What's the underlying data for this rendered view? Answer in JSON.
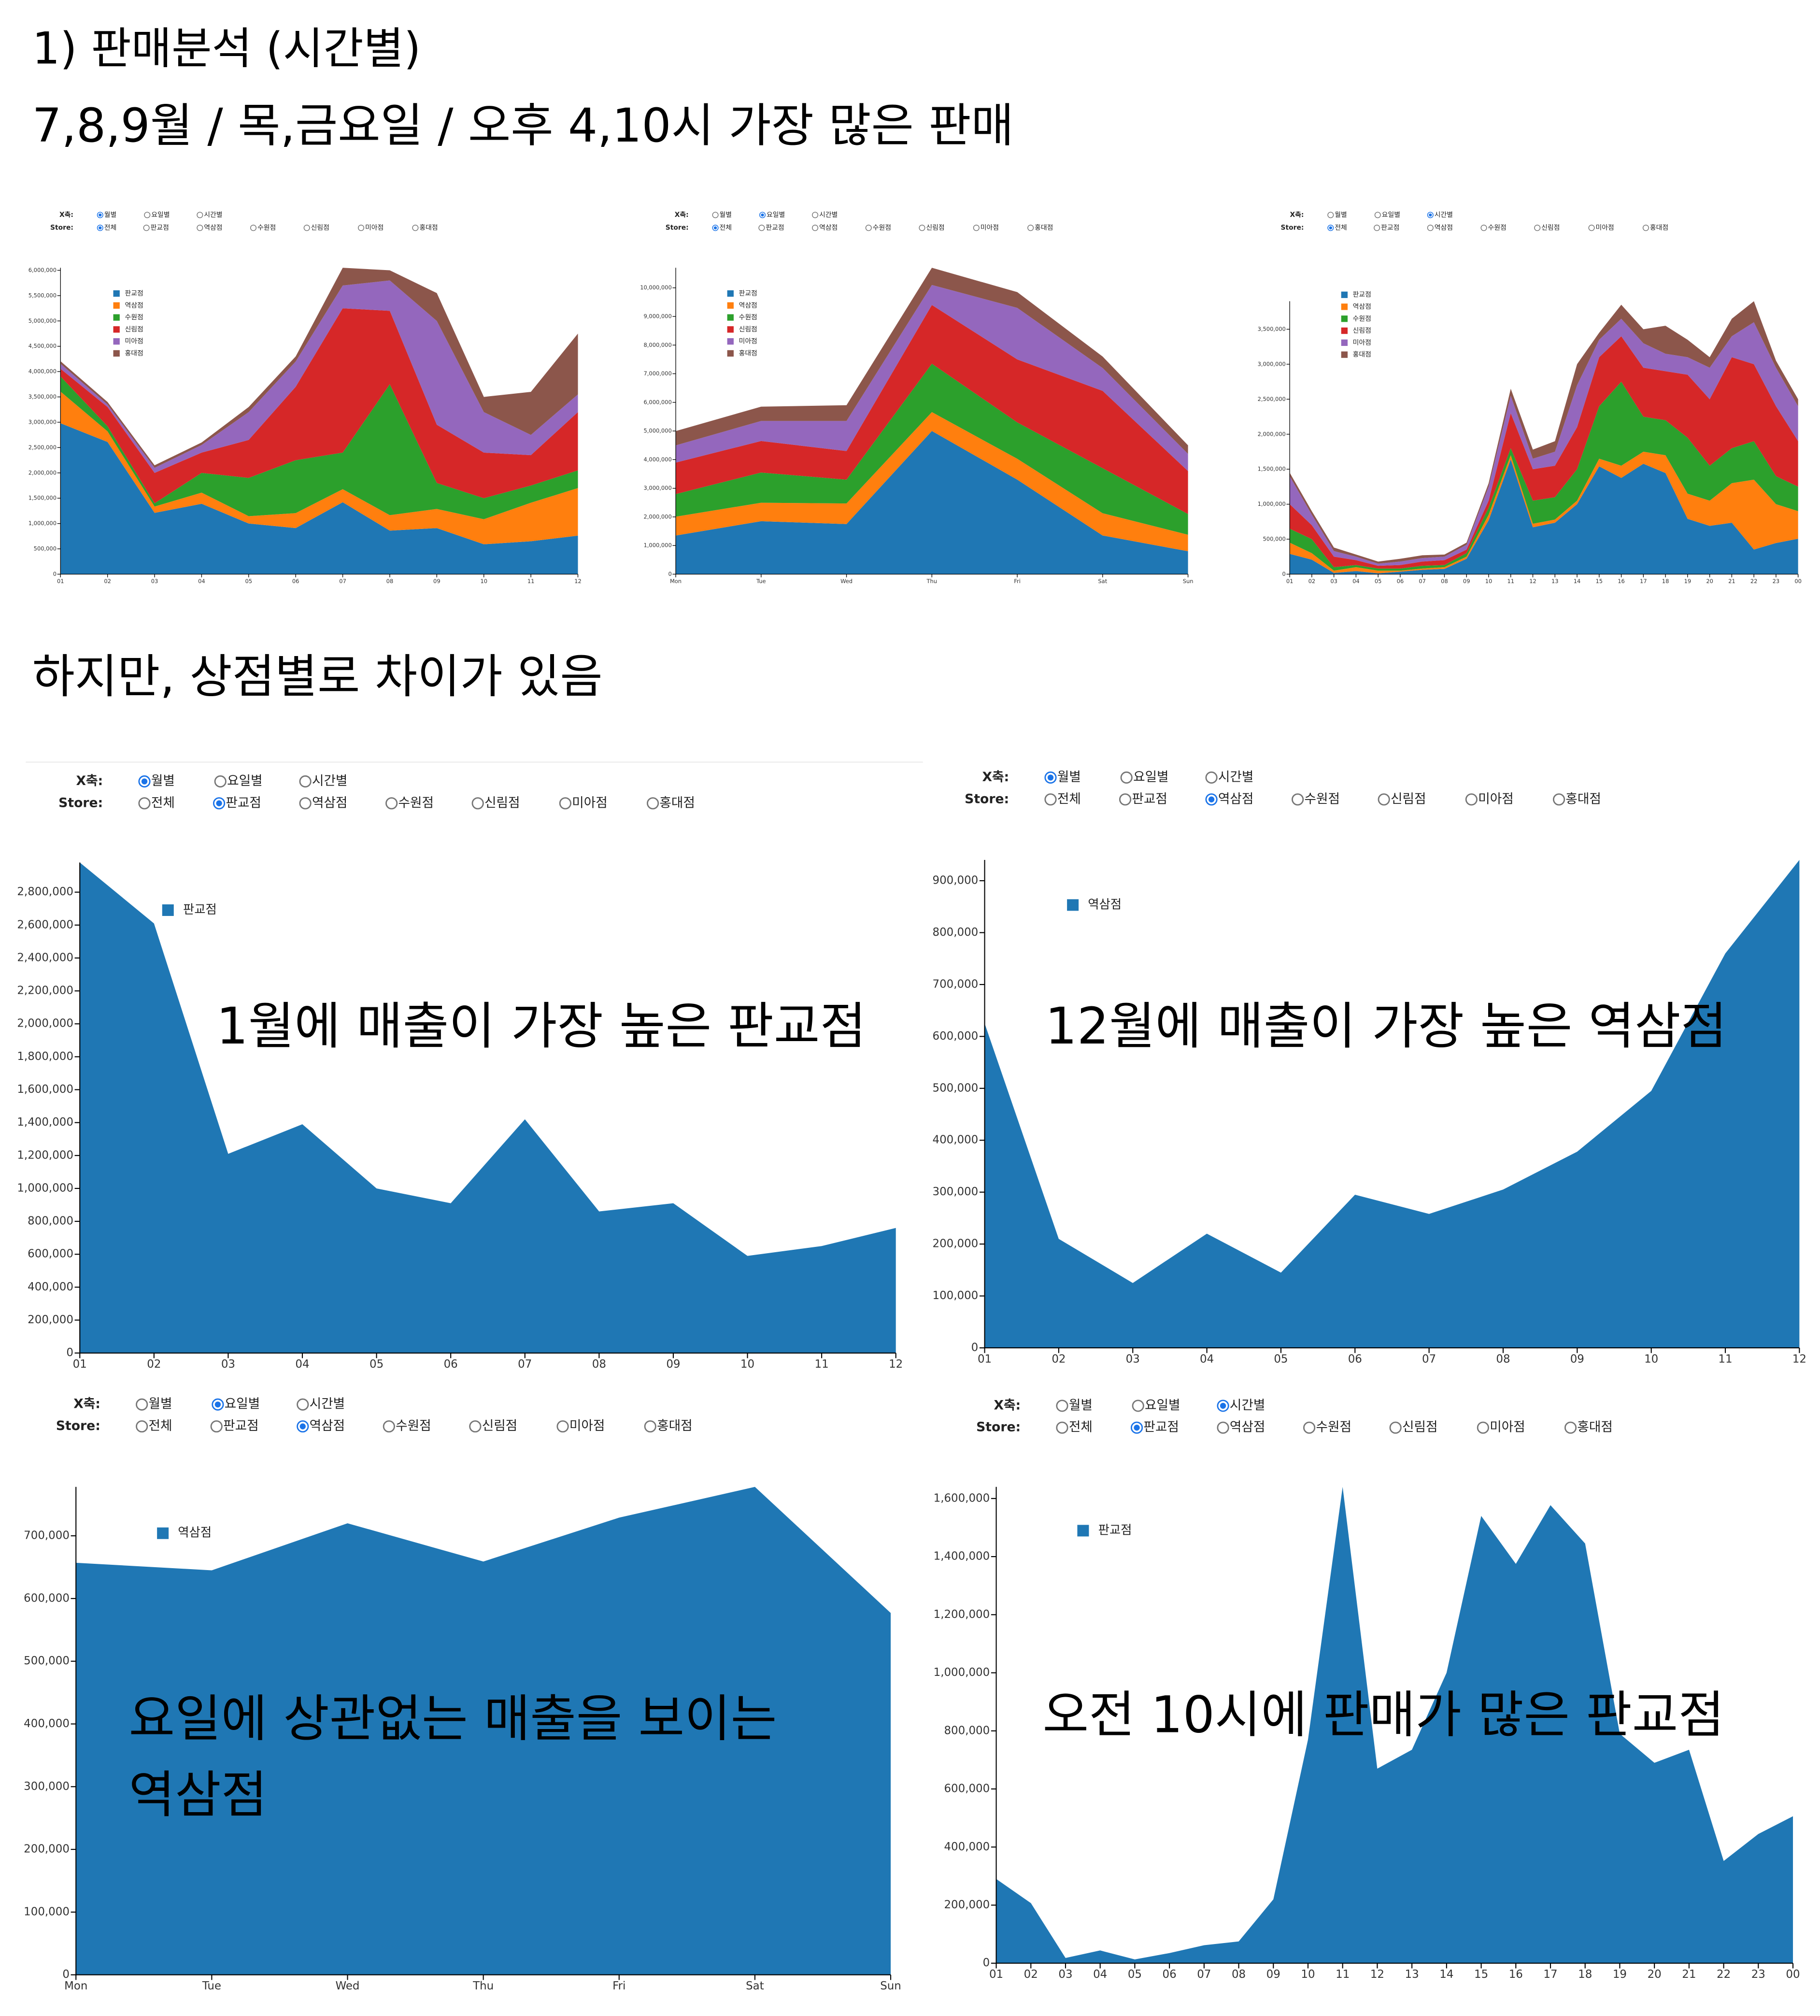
{
  "heading": {
    "title": "1) 판매분석 (시간별)",
    "summary": "7,8,9월 / 목,금요일 / 오후 4,10시 가장 많은 판매",
    "note": "하지만, 상점별로 차이가 있음"
  },
  "chart_data": [
    {
      "type": "stacked_area",
      "controls": {
        "x_label": "X축:",
        "x_options": [
          "월별",
          "요일별",
          "시간별"
        ],
        "store_label": "Store:",
        "store_options": [
          "전체",
          "판교점",
          "역삼점",
          "수원점",
          "신림점",
          "미아점",
          "홍대점"
        ],
        "x_selected": 0,
        "store_selected": 0
      },
      "categories": [
        "01",
        "02",
        "03",
        "04",
        "05",
        "06",
        "07",
        "08",
        "09",
        "10",
        "11",
        "12"
      ],
      "series": [
        {
          "name": "판교점",
          "color": "#1f77b4",
          "values": [
            2980000,
            2610000,
            1210000,
            1390000,
            1000000,
            910000,
            1420000,
            860000,
            910000,
            590000,
            650000,
            760000
          ]
        },
        {
          "name": "역삼점",
          "color": "#ff7f0e",
          "values": [
            625000,
            210000,
            125000,
            220000,
            145000,
            295000,
            258000,
            305000,
            378000,
            495000,
            760000,
            940000
          ]
        },
        {
          "name": "수원점",
          "color": "#2ca02c",
          "values": [
            300000,
            100000,
            65000,
            390000,
            755000,
            1045000,
            722000,
            2585000,
            512000,
            415000,
            340000,
            350000
          ]
        },
        {
          "name": "신림점",
          "color": "#d62728",
          "values": [
            150000,
            380000,
            600000,
            400000,
            750000,
            1450000,
            2850000,
            1450000,
            1150000,
            900000,
            600000,
            1150000
          ]
        },
        {
          "name": "미아점",
          "color": "#9467bd",
          "values": [
            100000,
            50000,
            100000,
            150000,
            550000,
            500000,
            450000,
            600000,
            2050000,
            800000,
            400000,
            350000
          ]
        },
        {
          "name": "홍대점",
          "color": "#8c564b",
          "values": [
            50000,
            50000,
            50000,
            50000,
            100000,
            100000,
            350000,
            200000,
            550000,
            300000,
            850000,
            1200000
          ]
        }
      ],
      "ylim": [
        0,
        6050000
      ],
      "yticks": [
        0,
        {
          "value": 500000,
          "label": "500,000"
        },
        {
          "value": 1000000,
          "label": "1,000,000"
        },
        {
          "value": 1500000,
          "label": "1,500,000"
        },
        {
          "value": 2000000,
          "label": "2,000,000"
        },
        {
          "value": 2500000,
          "label": "2,500,000"
        },
        {
          "value": 3000000,
          "label": "3,000,000"
        },
        {
          "value": 3500000,
          "label": "3,500,000"
        },
        {
          "value": 4000000,
          "label": "4,000,000"
        },
        {
          "value": 4500000,
          "label": "4,500,000"
        },
        {
          "value": 5000000,
          "label": "5,000,000"
        },
        {
          "value": 5500000,
          "label": "5,500,000"
        },
        {
          "value": 6000000,
          "label": "6,000,000"
        }
      ]
    },
    {
      "type": "stacked_area",
      "controls": {
        "x_label": "X축:",
        "x_options": [
          "월별",
          "요일별",
          "시간별"
        ],
        "store_label": "Store:",
        "store_options": [
          "전체",
          "판교점",
          "역삼점",
          "수원점",
          "신림점",
          "미아점",
          "홍대점"
        ],
        "x_selected": 1,
        "store_selected": 0
      },
      "categories": [
        "Mon",
        "Tue",
        "Wed",
        "Thu",
        "Fri",
        "Sat",
        "Sun"
      ],
      "series": [
        {
          "name": "판교점",
          "color": "#1f77b4",
          "values": [
            1350000,
            1850000,
            1750000,
            5000000,
            3300000,
            1350000,
            800000
          ]
        },
        {
          "name": "역삼점",
          "color": "#ff7f0e",
          "values": [
            657000,
            645000,
            720000,
            659000,
            729000,
            778000,
            577000
          ]
        },
        {
          "name": "수원점",
          "color": "#2ca02c",
          "values": [
            790000,
            1055000,
            830000,
            1691000,
            1271000,
            1572000,
            723000
          ]
        },
        {
          "name": "신림점",
          "color": "#d62728",
          "values": [
            1100000,
            1100000,
            1000000,
            2050000,
            2200000,
            2700000,
            1500000
          ]
        },
        {
          "name": "미아점",
          "color": "#9467bd",
          "values": [
            600000,
            700000,
            1050000,
            700000,
            1800000,
            800000,
            600000
          ]
        },
        {
          "name": "홍대점",
          "color": "#8c564b",
          "values": [
            500000,
            500000,
            550000,
            600000,
            550000,
            400000,
            300000
          ]
        }
      ],
      "ylim": [
        0,
        10700000
      ],
      "yticks": [
        0,
        {
          "value": 1000000,
          "label": "1,000,000"
        },
        {
          "value": 2000000,
          "label": "2,000,000"
        },
        {
          "value": 3000000,
          "label": "3,000,000"
        },
        {
          "value": 4000000,
          "label": "4,000,000"
        },
        {
          "value": 5000000,
          "label": "5,000,000"
        },
        {
          "value": 6000000,
          "label": "6,000,000"
        },
        {
          "value": 7000000,
          "label": "7,000,000"
        },
        {
          "value": 8000000,
          "label": "8,000,000"
        },
        {
          "value": 9000000,
          "label": "9,000,000"
        },
        {
          "value": 10000000,
          "label": "10,000,000"
        }
      ]
    },
    {
      "type": "stacked_area",
      "controls": {
        "x_label": "X축:",
        "x_options": [
          "월별",
          "요일별",
          "시간별"
        ],
        "store_label": "Store:",
        "store_options": [
          "전체",
          "판교점",
          "역삼점",
          "수원점",
          "신림점",
          "미아점",
          "홍대점"
        ],
        "x_selected": 2,
        "store_selected": 0
      },
      "categories": [
        "01",
        "02",
        "03",
        "04",
        "05",
        "06",
        "07",
        "08",
        "09",
        "10",
        "11",
        "12",
        "13",
        "14",
        "15",
        "16",
        "17",
        "18",
        "19",
        "20",
        "21",
        "22",
        "23",
        "00"
      ],
      "series": [
        {
          "name": "판교점",
          "color": "#1f77b4",
          "values": [
            290000,
            207000,
            18000,
            44000,
            13000,
            35000,
            62000,
            75000,
            220000,
            770000,
            1640000,
            670000,
            735000,
            1000000,
            1540000,
            1375000,
            1577000,
            1445000,
            790000,
            690000,
            735000,
            352000,
            445000,
            506000
          ]
        },
        {
          "name": "역삼점",
          "color": "#ff7f0e",
          "values": [
            160000,
            93000,
            32000,
            56000,
            37000,
            15000,
            18000,
            25000,
            30000,
            80000,
            60000,
            50000,
            45000,
            50000,
            110000,
            175000,
            173000,
            255000,
            360000,
            360000,
            565000,
            998000,
            555000,
            394000
          ]
        },
        {
          "name": "수원점",
          "color": "#2ca02c",
          "values": [
            200000,
            200000,
            50000,
            30000,
            30000,
            30000,
            40000,
            30000,
            50000,
            100000,
            100000,
            330000,
            320000,
            450000,
            750000,
            1200000,
            500000,
            500000,
            800000,
            500000,
            500000,
            550000,
            400000,
            350000
          ]
        },
        {
          "name": "신림점",
          "color": "#d62728",
          "values": [
            350000,
            200000,
            150000,
            70000,
            40000,
            50000,
            60000,
            70000,
            50000,
            100000,
            500000,
            450000,
            450000,
            600000,
            700000,
            650000,
            700000,
            700000,
            900000,
            950000,
            1300000,
            1100000,
            1000000,
            650000
          ]
        },
        {
          "name": "미아점",
          "color": "#9467bd",
          "values": [
            400000,
            150000,
            80000,
            50000,
            30000,
            50000,
            50000,
            50000,
            70000,
            200000,
            250000,
            150000,
            200000,
            600000,
            250000,
            250000,
            350000,
            250000,
            250000,
            450000,
            300000,
            600000,
            550000,
            500000
          ]
        },
        {
          "name": "홍대점",
          "color": "#8c564b",
          "values": [
            50000,
            50000,
            50000,
            30000,
            30000,
            40000,
            40000,
            30000,
            30000,
            50000,
            100000,
            130000,
            150000,
            300000,
            100000,
            200000,
            200000,
            400000,
            250000,
            150000,
            250000,
            300000,
            100000,
            100000
          ]
        }
      ],
      "ylim": [
        0,
        3900000
      ],
      "yticks": [
        0,
        {
          "value": 500000,
          "label": "500,000"
        },
        {
          "value": 1000000,
          "label": "1,000,000"
        },
        {
          "value": 1500000,
          "label": "1,500,000"
        },
        {
          "value": 2000000,
          "label": "2,000,000"
        },
        {
          "value": 2500000,
          "label": "2,500,000"
        },
        {
          "value": 3000000,
          "label": "3,000,000"
        },
        {
          "value": 3500000,
          "label": "3,500,000"
        }
      ]
    },
    {
      "type": "stacked_area",
      "controls": {
        "x_label": "X축:",
        "x_options": [
          "월별",
          "요일별",
          "시간별"
        ],
        "store_label": "Store:",
        "store_options": [
          "전체",
          "판교점",
          "역삼점",
          "수원점",
          "신림점",
          "미아점",
          "홍대점"
        ],
        "x_selected": 0,
        "store_selected": 1
      },
      "annotation": [
        "1월에 매출이 가장 높은 판교점"
      ],
      "categories": [
        "01",
        "02",
        "03",
        "04",
        "05",
        "06",
        "07",
        "08",
        "09",
        "10",
        "11",
        "12"
      ],
      "series": [
        {
          "name": "판교점",
          "color": "#1f77b4",
          "values": [
            2980000,
            2610000,
            1210000,
            1390000,
            1000000,
            910000,
            1420000,
            860000,
            910000,
            590000,
            650000,
            760000
          ]
        }
      ],
      "ylim": [
        0,
        2980000
      ],
      "yticks": [
        0,
        {
          "value": 200000,
          "label": "200,000"
        },
        {
          "value": 400000,
          "label": "400,000"
        },
        {
          "value": 600000,
          "label": "600,000"
        },
        {
          "value": 800000,
          "label": "800,000"
        },
        {
          "value": 1000000,
          "label": "1,000,000"
        },
        {
          "value": 1200000,
          "label": "1,200,000"
        },
        {
          "value": 1400000,
          "label": "1,400,000"
        },
        {
          "value": 1600000,
          "label": "1,600,000"
        },
        {
          "value": 1800000,
          "label": "1,800,000"
        },
        {
          "value": 2000000,
          "label": "2,000,000"
        },
        {
          "value": 2200000,
          "label": "2,200,000"
        },
        {
          "value": 2400000,
          "label": "2,400,000"
        },
        {
          "value": 2600000,
          "label": "2,600,000"
        },
        {
          "value": 2800000,
          "label": "2,800,000"
        }
      ]
    },
    {
      "type": "stacked_area",
      "controls": {
        "x_label": "X축:",
        "x_options": [
          "월별",
          "요일별",
          "시간별"
        ],
        "store_label": "Store:",
        "store_options": [
          "전체",
          "판교점",
          "역삼점",
          "수원점",
          "신림점",
          "미아점",
          "홍대점"
        ],
        "x_selected": 0,
        "store_selected": 2
      },
      "annotation": [
        "12월에 매출이 가장 높은 역삼점"
      ],
      "categories": [
        "01",
        "02",
        "03",
        "04",
        "05",
        "06",
        "07",
        "08",
        "09",
        "10",
        "11",
        "12"
      ],
      "series": [
        {
          "name": "역삼점",
          "color": "#1f77b4",
          "values": [
            625000,
            210000,
            125000,
            220000,
            145000,
            295000,
            258000,
            305000,
            378000,
            495000,
            760000,
            940000
          ]
        }
      ],
      "ylim": [
        0,
        940000
      ],
      "yticks": [
        0,
        {
          "value": 100000,
          "label": "100,000"
        },
        {
          "value": 200000,
          "label": "200,000"
        },
        {
          "value": 300000,
          "label": "300,000"
        },
        {
          "value": 400000,
          "label": "400,000"
        },
        {
          "value": 500000,
          "label": "500,000"
        },
        {
          "value": 600000,
          "label": "600,000"
        },
        {
          "value": 700000,
          "label": "700,000"
        },
        {
          "value": 800000,
          "label": "800,000"
        },
        {
          "value": 900000,
          "label": "900,000"
        }
      ]
    },
    {
      "type": "stacked_area",
      "controls": {
        "x_label": "X축:",
        "x_options": [
          "월별",
          "요일별",
          "시간별"
        ],
        "store_label": "Store:",
        "store_options": [
          "전체",
          "판교점",
          "역삼점",
          "수원점",
          "신림점",
          "미아점",
          "홍대점"
        ],
        "x_selected": 1,
        "store_selected": 2
      },
      "annotation": [
        "요일에 상관없는 매출을 보이는",
        "역삼점"
      ],
      "categories": [
        "Mon",
        "Tue",
        "Wed",
        "Thu",
        "Fri",
        "Sat",
        "Sun"
      ],
      "series": [
        {
          "name": "역삼점",
          "color": "#1f77b4",
          "values": [
            657000,
            645000,
            720000,
            659000,
            729000,
            778000,
            577000
          ]
        }
      ],
      "ylim": [
        0,
        778000
      ],
      "yticks": [
        0,
        {
          "value": 100000,
          "label": "100,000"
        },
        {
          "value": 200000,
          "label": "200,000"
        },
        {
          "value": 300000,
          "label": "300,000"
        },
        {
          "value": 400000,
          "label": "400,000"
        },
        {
          "value": 500000,
          "label": "500,000"
        },
        {
          "value": 600000,
          "label": "600,000"
        },
        {
          "value": 700000,
          "label": "700,000"
        }
      ]
    },
    {
      "type": "stacked_area",
      "controls": {
        "x_label": "X축:",
        "x_options": [
          "월별",
          "요일별",
          "시간별"
        ],
        "store_label": "Store:",
        "store_options": [
          "전체",
          "판교점",
          "역삼점",
          "수원점",
          "신림점",
          "미아점",
          "홍대점"
        ],
        "x_selected": 2,
        "store_selected": 1
      },
      "annotation": [
        "오전 10시에 판매가 많은 판교점"
      ],
      "categories": [
        "01",
        "02",
        "03",
        "04",
        "05",
        "06",
        "07",
        "08",
        "09",
        "10",
        "11",
        "12",
        "13",
        "14",
        "15",
        "16",
        "17",
        "18",
        "19",
        "20",
        "21",
        "22",
        "23",
        "00"
      ],
      "series": [
        {
          "name": "판교점",
          "color": "#1f77b4",
          "values": [
            290000,
            207000,
            18000,
            44000,
            13000,
            35000,
            62000,
            75000,
            220000,
            770000,
            1640000,
            670000,
            735000,
            1000000,
            1540000,
            1375000,
            1577000,
            1445000,
            790000,
            690000,
            735000,
            352000,
            445000,
            506000
          ]
        }
      ],
      "ylim": [
        0,
        1640000
      ],
      "yticks": [
        0,
        {
          "value": 200000,
          "label": "200,000"
        },
        {
          "value": 400000,
          "label": "400,000"
        },
        {
          "value": 600000,
          "label": "600,000"
        },
        {
          "value": 800000,
          "label": "800,000"
        },
        {
          "value": 1000000,
          "label": "1,000,000"
        },
        {
          "value": 1200000,
          "label": "1,200,000"
        },
        {
          "value": 1400000,
          "label": "1,400,000"
        },
        {
          "value": 1600000,
          "label": "1,600,000"
        }
      ]
    }
  ]
}
